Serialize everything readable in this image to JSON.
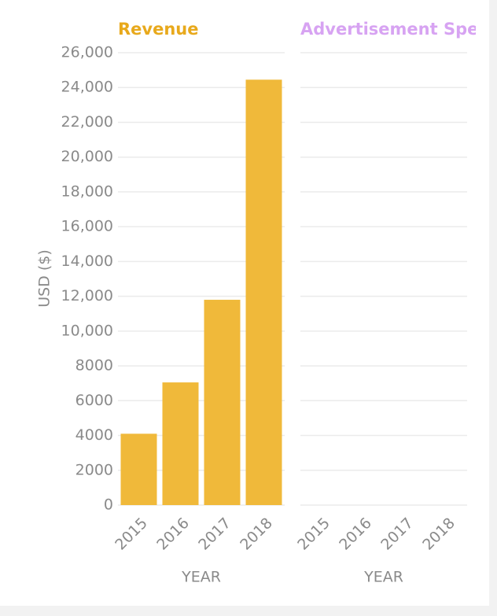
{
  "chart_data": [
    {
      "type": "bar",
      "title": "Revenue",
      "title_color": "#e8a91c",
      "color": "#f0b93a",
      "categories": [
        "2015",
        "2016",
        "2017",
        "2018"
      ],
      "values": [
        4100,
        7050,
        11800,
        24450
      ],
      "ylabel": "USD ($)",
      "xlabel": "YEAR",
      "ylim": [
        0,
        26000
      ],
      "yticks": [
        0,
        2000,
        4000,
        6000,
        8000,
        {
          "value": 10000,
          "label": "10,000"
        },
        {
          "value": 12000,
          "label": "12,000"
        },
        {
          "value": 14000,
          "label": "14,000"
        },
        {
          "value": 16000,
          "label": "16,000"
        },
        {
          "value": 18000,
          "label": "18,000"
        },
        {
          "value": 20000,
          "label": "20,000"
        },
        {
          "value": 22000,
          "label": "22,000"
        },
        {
          "value": 24000,
          "label": "24,000"
        },
        {
          "value": 26000,
          "label": "26,000"
        }
      ],
      "grid": true
    },
    {
      "type": "bar",
      "title": "Advertisement Spen",
      "title_color": "#d7a3f2",
      "color": "#d7a3f2",
      "categories": [
        "2015",
        "2016",
        "2017",
        "2018"
      ],
      "xlabel": "YEAR",
      "ylim": [
        0,
        26000
      ],
      "yticks": [
        0,
        2000,
        4000,
        6000,
        8000,
        10000,
        12000,
        14000,
        16000,
        18000,
        20000,
        22000,
        24000,
        26000
      ],
      "grid": true,
      "tick_labels": false
    }
  ]
}
